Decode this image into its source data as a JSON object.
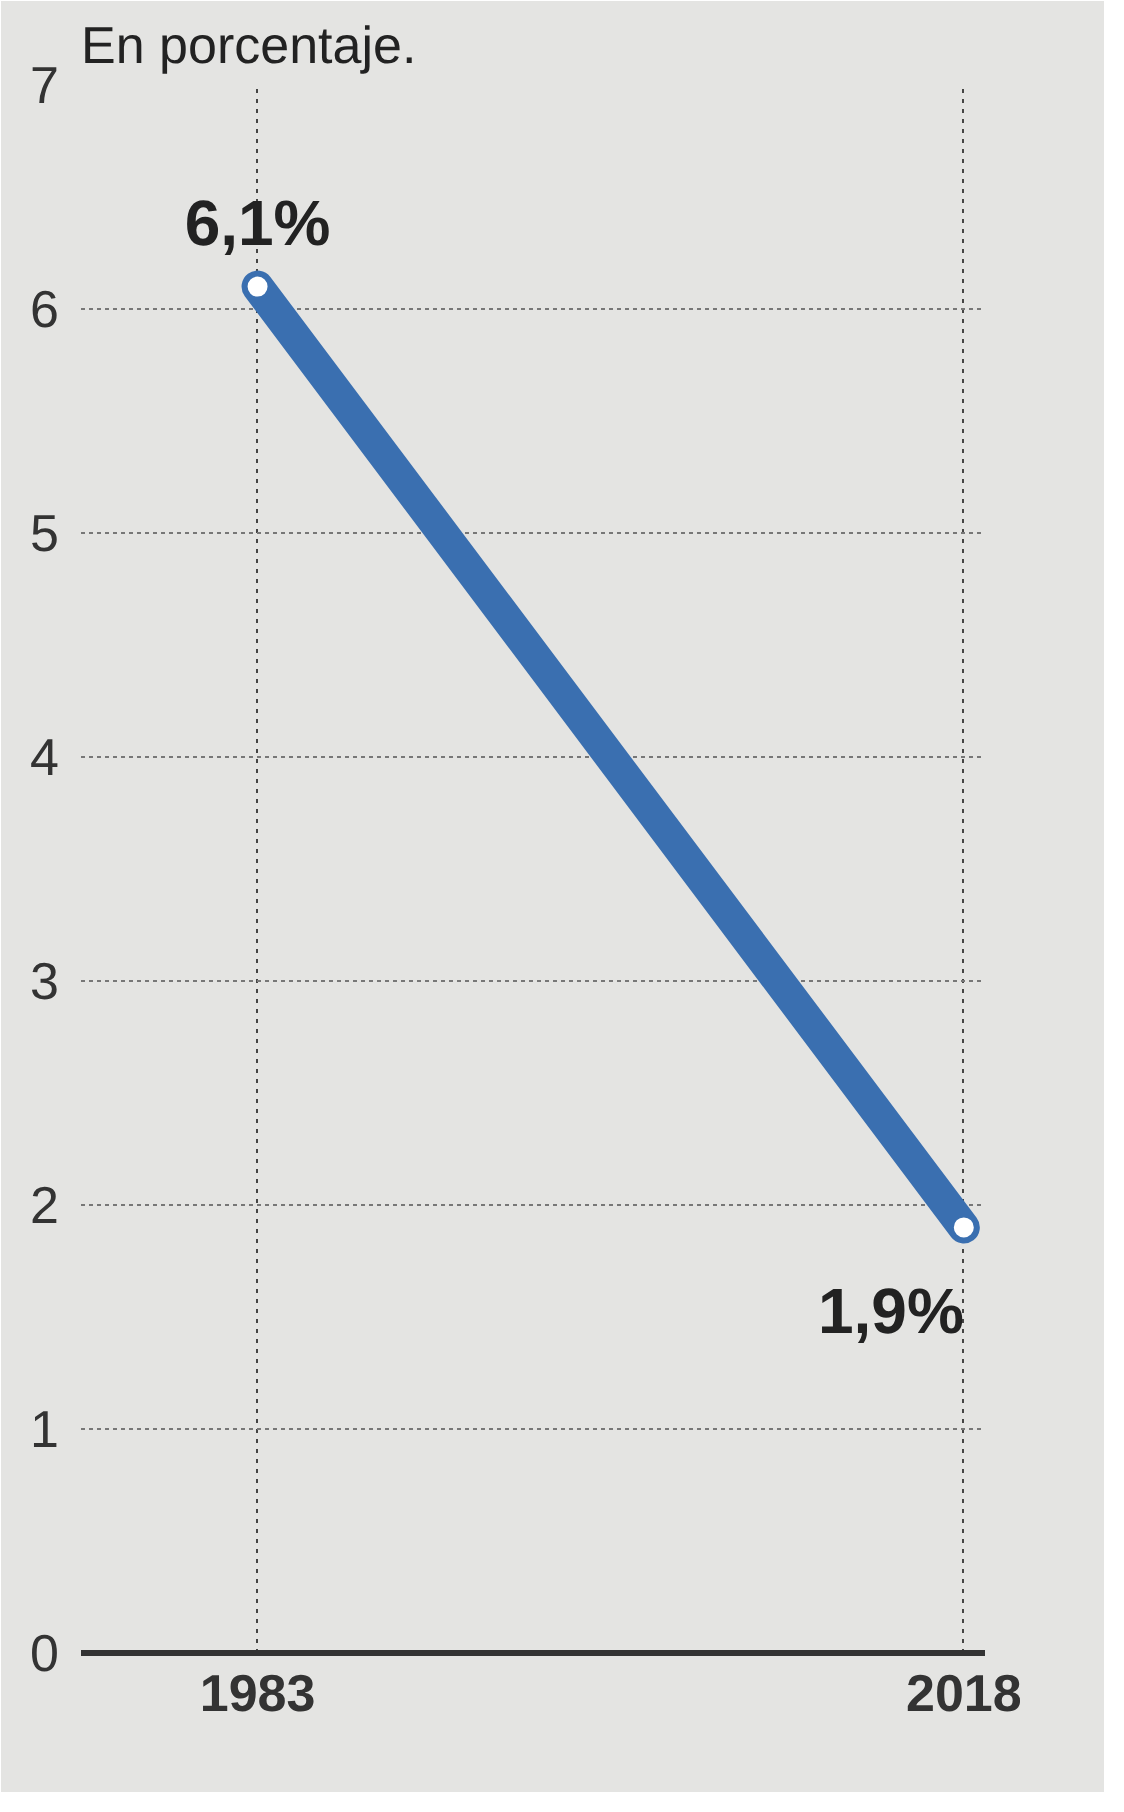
{
  "chart_data": {
    "type": "line",
    "title": "En porcentaje.",
    "categories": [
      "1983",
      "2018"
    ],
    "series": [
      {
        "color": "#3a6fb0",
        "values": [
          6.1,
          1.9
        ],
        "value_labels": [
          "6,1%",
          "1,9%"
        ]
      }
    ],
    "ylim": [
      0,
      7
    ],
    "yticks": [
      0,
      1,
      2,
      3,
      4,
      5,
      6,
      7
    ],
    "grid": true,
    "marker": "circle",
    "line_style": "solid"
  }
}
